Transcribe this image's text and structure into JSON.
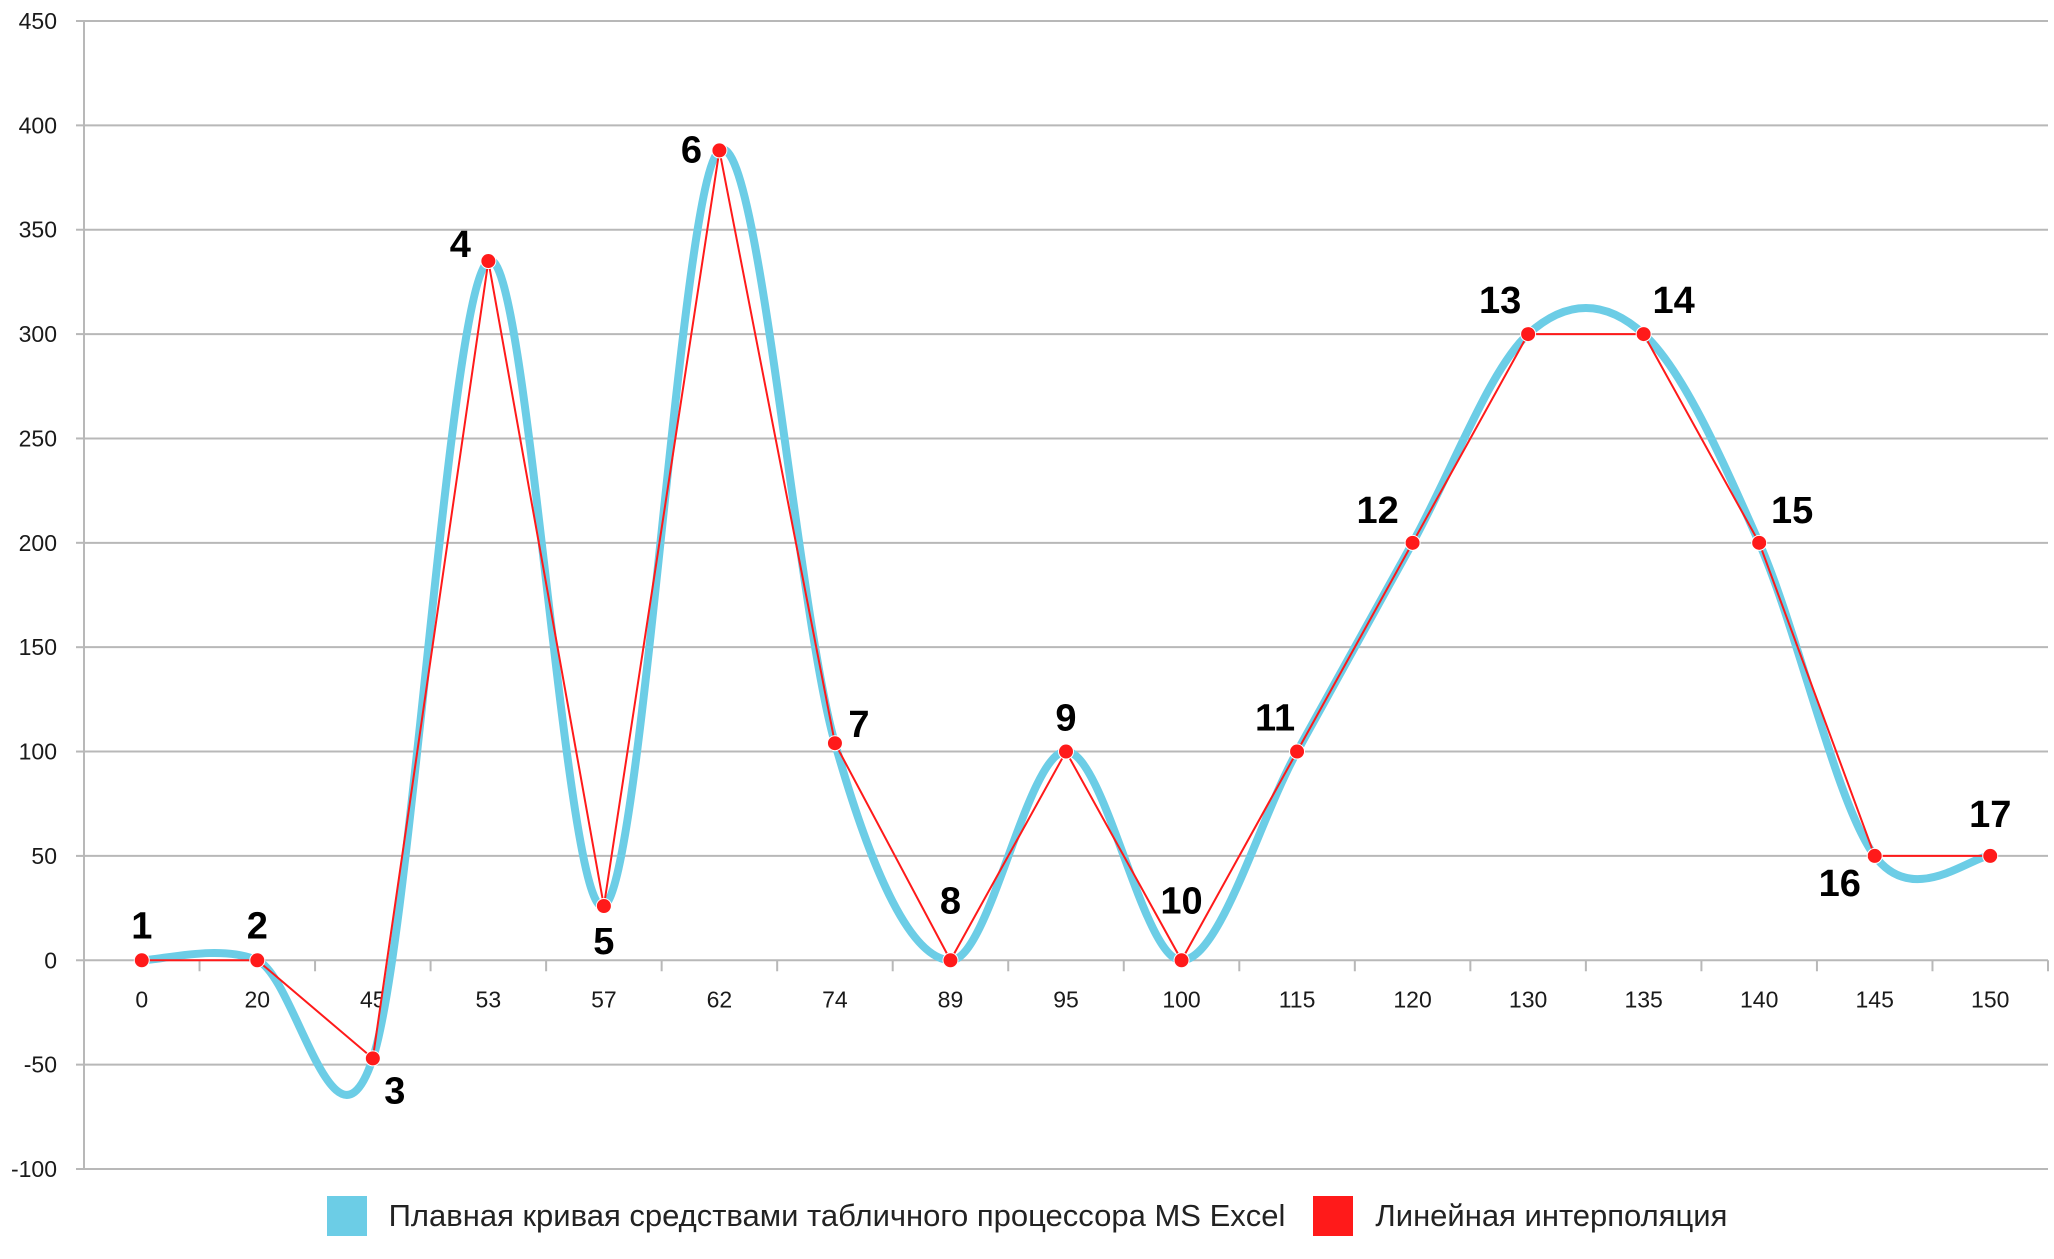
{
  "chart_data": {
    "type": "line",
    "categories": [
      "0",
      "20",
      "45",
      "53",
      "57",
      "62",
      "74",
      "89",
      "95",
      "100",
      "115",
      "120",
      "130",
      "135",
      "140",
      "145",
      "150"
    ],
    "ylim": [
      -100,
      450
    ],
    "yticks": [
      450,
      400,
      350,
      300,
      250,
      200,
      150,
      100,
      50,
      0,
      -50,
      -100
    ],
    "grid": true,
    "legend_position": "bottom",
    "series": [
      {
        "name": "Плавная кривая средствами табличного процессора MS Excel",
        "color": "#6ccde6",
        "style": "smooth",
        "values": [
          0,
          0,
          -47,
          335,
          26,
          388,
          104,
          0,
          100,
          0,
          100,
          200,
          300,
          300,
          200,
          50,
          50
        ]
      },
      {
        "name": "Линейная интерполяция",
        "color": "#ff1a1a",
        "style": "linear-with-markers",
        "values": [
          0,
          0,
          -47,
          335,
          26,
          388,
          104,
          0,
          100,
          0,
          100,
          200,
          300,
          300,
          200,
          50,
          50
        ]
      }
    ],
    "point_labels": [
      "1",
      "2",
      "3",
      "4",
      "5",
      "6",
      "7",
      "8",
      "9",
      "10",
      "11",
      "12",
      "13",
      "14",
      "15",
      "16",
      "17"
    ]
  }
}
